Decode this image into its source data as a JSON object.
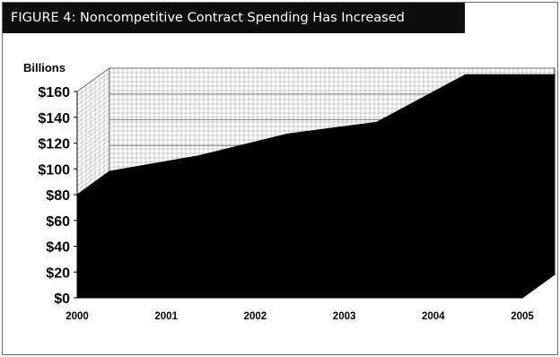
{
  "figure": {
    "title": "FIGURE 4:  Noncompetitive Contract Spending Has Increased"
  },
  "chart_data": {
    "type": "area",
    "title": "FIGURE 4:  Noncompetitive Contract Spending Has Increased",
    "ylabel": "Billions",
    "xlabel": "",
    "categories": [
      "2000",
      "2001",
      "2002",
      "2003",
      "2004",
      "2005"
    ],
    "series": [
      {
        "values": [
          80,
          92,
          109,
          118,
          155,
          155
        ]
      }
    ],
    "ylim": [
      0,
      160
    ],
    "yticks": [
      "$0",
      "$20",
      "$40",
      "$60",
      "$80",
      "$100",
      "$120",
      "$140",
      "$160"
    ],
    "grid": true,
    "three_d": true,
    "fill_color": "#000000",
    "wall_color": "#ffffff",
    "grid_color": "#9a9a9a"
  }
}
